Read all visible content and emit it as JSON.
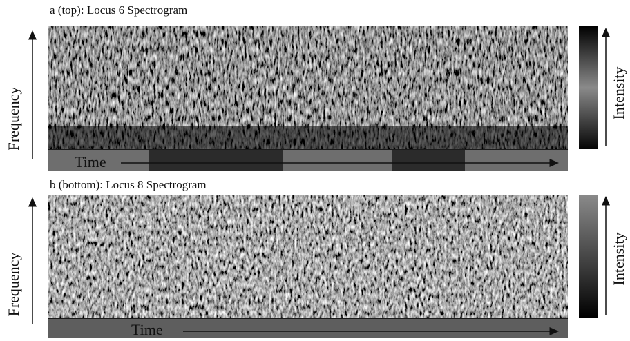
{
  "panels": [
    {
      "title": "a (top): Locus 6 Spectrogram",
      "y_label": "Frequency",
      "x_label": "Time",
      "colorbar_label": "Intensity"
    },
    {
      "title": "b (bottom): Locus 8 Spectrogram",
      "y_label": "Frequency",
      "x_label": "Time",
      "colorbar_label": "Intensity"
    }
  ]
}
